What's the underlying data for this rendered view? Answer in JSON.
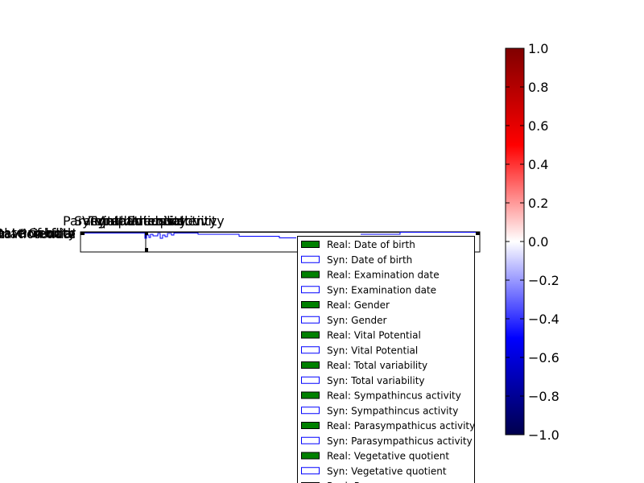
{
  "chart_data": [
    {
      "type": "area",
      "title": "",
      "xlabel": "",
      "ylabel": "",
      "overlapping_top_labels": [
        "Parasympathicus activity",
        "Sympathincus activity",
        "Vegetative quotient",
        "Total variability",
        "Vital Potential"
      ],
      "overlapping_left_labels": [
        "Date of birth",
        "Examination date",
        "Gender",
        "Vital Potential",
        "Total variability"
      ],
      "series": [
        {
          "name": "Real: Date of birth",
          "style": "filled",
          "color": "#008000"
        },
        {
          "name": "Syn: Date of birth",
          "style": "outline",
          "color": "#0000ff"
        },
        {
          "name": "Real: Examination date",
          "style": "filled",
          "color": "#008000"
        },
        {
          "name": "Syn: Examination date",
          "style": "outline",
          "color": "#0000ff"
        },
        {
          "name": "Real: Gender",
          "style": "filled",
          "color": "#008000"
        },
        {
          "name": "Syn: Gender",
          "style": "outline",
          "color": "#0000ff"
        },
        {
          "name": "Real: Vital Potential",
          "style": "filled",
          "color": "#008000"
        },
        {
          "name": "Syn: Vital Potential",
          "style": "outline",
          "color": "#0000ff"
        },
        {
          "name": "Real: Total variability",
          "style": "filled",
          "color": "#008000"
        },
        {
          "name": "Syn: Total variability",
          "style": "outline",
          "color": "#0000ff"
        },
        {
          "name": "Real: Sympathincus activity",
          "style": "filled",
          "color": "#008000"
        },
        {
          "name": "Syn: Sympathincus activity",
          "style": "outline",
          "color": "#0000ff"
        },
        {
          "name": "Real: Parasympathicus activity",
          "style": "filled",
          "color": "#008000"
        },
        {
          "name": "Syn: Parasympathicus activity",
          "style": "outline",
          "color": "#0000ff"
        },
        {
          "name": "Real: Vegetative quotient",
          "style": "filled",
          "color": "#008000"
        },
        {
          "name": "Syn: Vegetative quotient",
          "style": "outline",
          "color": "#0000ff"
        },
        {
          "name": "Real: Pressure",
          "style": "filled",
          "color": "#008000"
        }
      ],
      "legend_position": "lower-right",
      "grid": false
    },
    {
      "type": "heatmap",
      "colorbar": {
        "min": -1.0,
        "max": 1.0,
        "ticks": [
          "1.0",
          "0.8",
          "0.6",
          "0.4",
          "0.2",
          "0.0",
          "−0.2",
          "−0.4",
          "−0.6",
          "−0.8",
          "−1.0"
        ],
        "colormap": [
          "#00004d",
          "#0000ff",
          "#ffffff",
          "#ff0000",
          "#800000"
        ]
      }
    }
  ]
}
